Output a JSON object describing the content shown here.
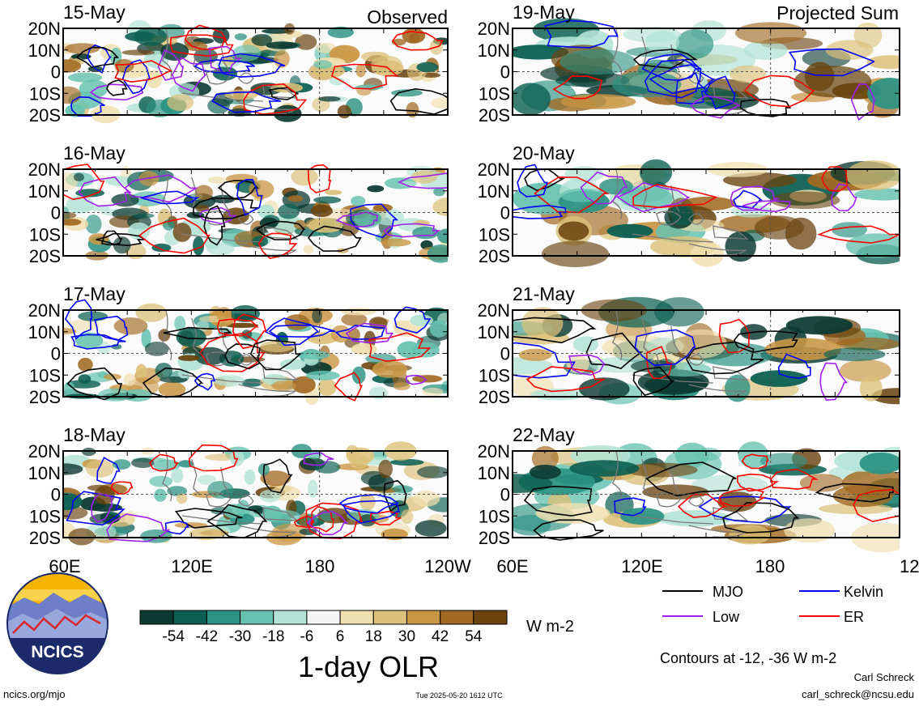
{
  "left_header": "Observed",
  "right_header": "Projected Sum",
  "observed_dates": [
    "15-May",
    "16-May",
    "17-May",
    "18-May"
  ],
  "projected_dates": [
    "19-May",
    "20-May",
    "21-May",
    "22-May"
  ],
  "lat_ticks": [
    "20N",
    "10N",
    "0",
    "10S",
    "20S"
  ],
  "lon_ticks": [
    "60E",
    "120E",
    "180",
    "120W"
  ],
  "colorbar": {
    "labels": [
      "-54",
      "-42",
      "-30",
      "-18",
      "-6",
      "6",
      "18",
      "30",
      "42",
      "54"
    ],
    "colors": [
      "#0c3a31",
      "#0b5f52",
      "#2e9384",
      "#66c2b0",
      "#b3e3d6",
      "#f5f5f5",
      "#f0dfb0",
      "#dcc17a",
      "#c99645",
      "#a16a23",
      "#6b4410"
    ],
    "units": "W m-2",
    "title": "1-day OLR"
  },
  "legend": {
    "items": [
      {
        "label": "MJO",
        "color": "#000000"
      },
      {
        "label": "Kelvin",
        "color": "#0000ff"
      },
      {
        "label": "Low",
        "color": "#a020f0"
      },
      {
        "label": "ER",
        "color": "#ff0000"
      }
    ],
    "note": "Contours at -12, -36 W m-2"
  },
  "logo_text": "NCICS",
  "footer": {
    "url": "ncics.org/mjo",
    "timestamp": "Tue 2025-05-20 1612 UTC",
    "author": "Carl Schreck",
    "email": "carl_schreck@ncsu.edu"
  }
}
